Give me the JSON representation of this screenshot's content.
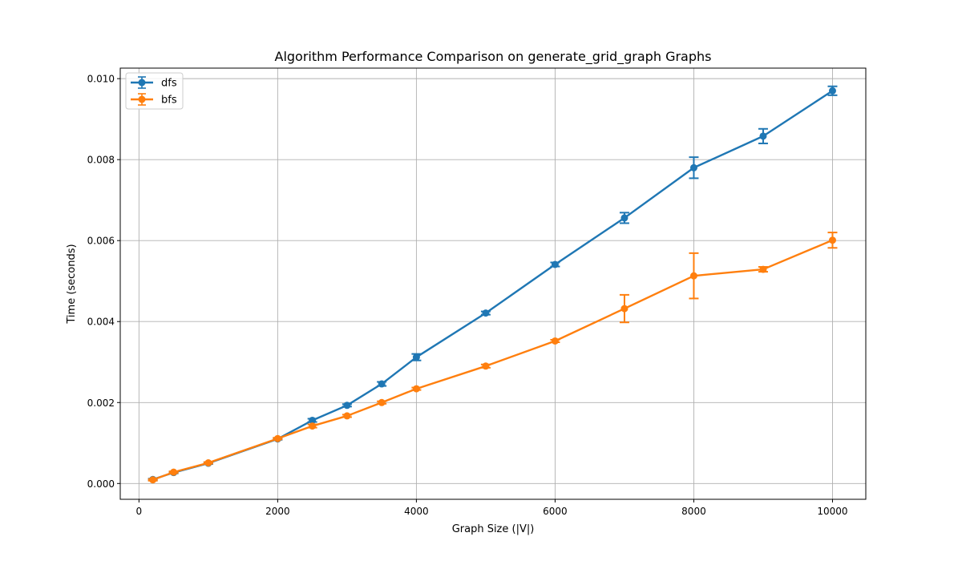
{
  "chart_data": {
    "type": "line",
    "title": "Algorithm Performance Comparison on generate_grid_graph Graphs",
    "xlabel": "Graph Size (|V|)",
    "ylabel": "Time (seconds)",
    "xlim": [
      -270,
      10480
    ],
    "ylim": [
      -0.00039,
      0.01026
    ],
    "xticks": [
      0,
      2000,
      4000,
      6000,
      8000,
      10000
    ],
    "xtick_labels": [
      "0",
      "2000",
      "4000",
      "6000",
      "8000",
      "10000"
    ],
    "yticks": [
      0.0,
      0.002,
      0.004,
      0.006,
      0.008,
      0.01
    ],
    "ytick_labels": [
      "0.000",
      "0.002",
      "0.004",
      "0.006",
      "0.008",
      "0.010"
    ],
    "grid": true,
    "legend_position": "top-left",
    "error_bars": true,
    "x": [
      200,
      500,
      1000,
      2000,
      2500,
      3000,
      3500,
      4000,
      5000,
      6000,
      7000,
      8000,
      9000,
      10000
    ],
    "series": [
      {
        "name": "dfs",
        "color": "#1f77b4",
        "values": [
          0.0001,
          0.00027,
          0.0005,
          0.0011,
          0.00156,
          0.00193,
          0.00246,
          0.00312,
          0.00421,
          0.00541,
          0.00656,
          0.0078,
          0.00858,
          0.0097
        ],
        "errors": [
          2e-05,
          2e-05,
          2e-05,
          2e-05,
          4e-05,
          3e-05,
          5e-05,
          8e-05,
          4e-05,
          5e-05,
          0.00013,
          0.00026,
          0.00018,
          0.00011
        ]
      },
      {
        "name": "bfs",
        "color": "#ff7f0e",
        "values": [
          9e-05,
          0.00028,
          0.00051,
          0.00111,
          0.00142,
          0.00167,
          0.002,
          0.00234,
          0.0029,
          0.00352,
          0.00432,
          0.00513,
          0.00529,
          0.00601
        ],
        "errors": [
          2e-05,
          2e-05,
          2e-05,
          2e-05,
          4e-05,
          3e-05,
          3e-05,
          3e-05,
          4e-05,
          3e-05,
          0.00034,
          0.00056,
          6e-05,
          0.00019
        ]
      }
    ]
  }
}
